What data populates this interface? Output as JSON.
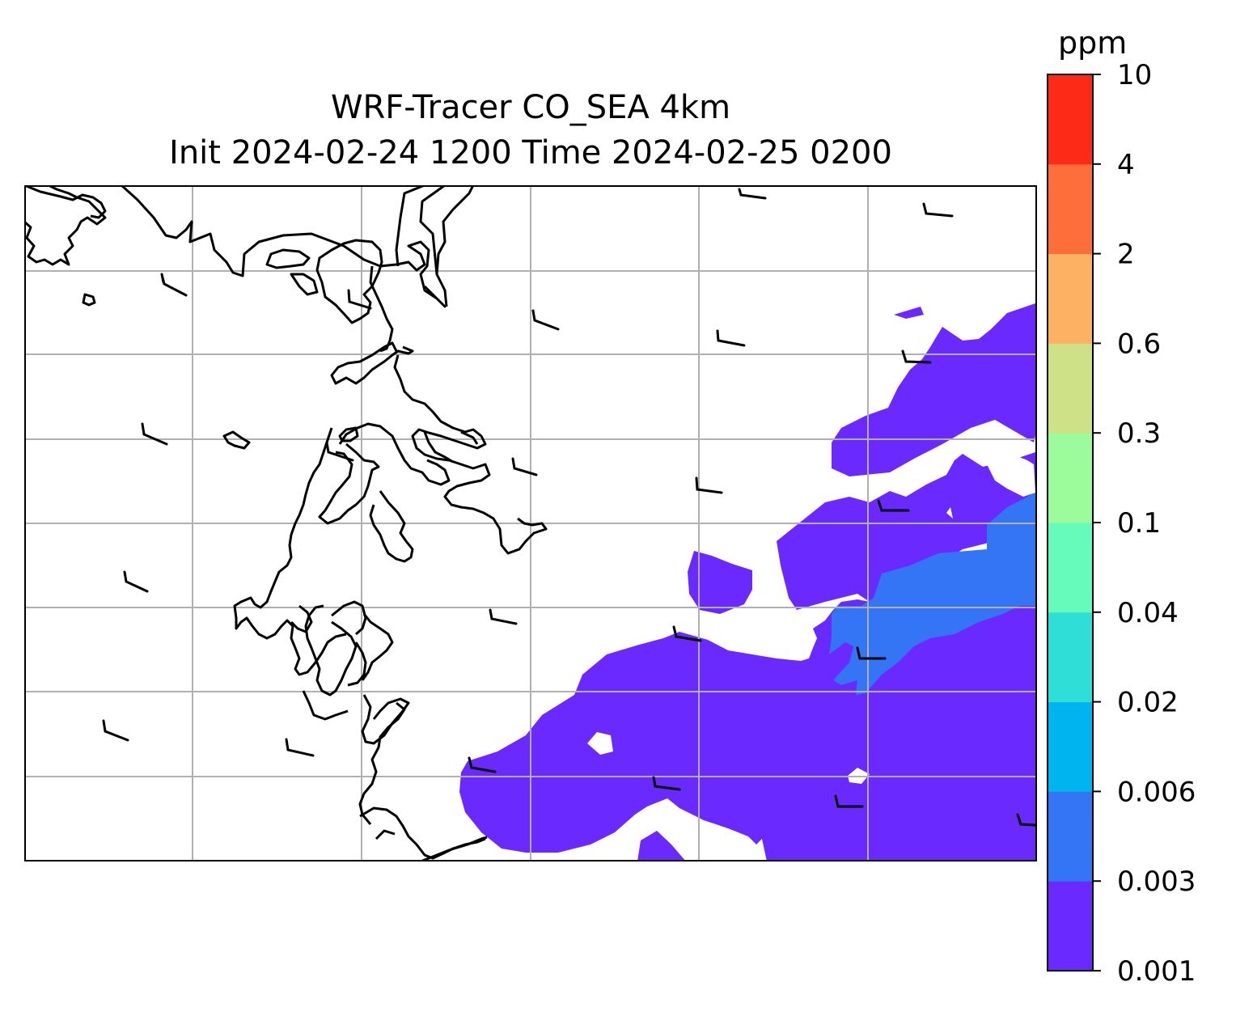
{
  "title_line1": "WRF-Tracer CO_SEA 4km",
  "title_line2": "Init 2024-02-24 1200 Time 2024-02-25 0200",
  "colorbar": {
    "unit": "ppm",
    "levels": [
      "0.001",
      "0.003",
      "0.006",
      "0.02",
      "0.04",
      "0.1",
      "0.3",
      "0.6",
      "2",
      "4",
      "10"
    ],
    "colors": [
      "#6a29fe",
      "#3475f5",
      "#00b5ef",
      "#2fded6",
      "#66fbbb",
      "#9cfc9c",
      "#cfe186",
      "#fdb263",
      "#fe6e3b",
      "#fd2a17"
    ]
  },
  "map": {
    "gridlines": true,
    "coastline_color": "#000000",
    "tracer_shading": [
      {
        "level_range": "0.001-0.003",
        "color": "#6a29fe"
      },
      {
        "level_range": "0.003-0.006",
        "color": "#3475f5"
      }
    ],
    "wind_barbs": 24
  }
}
